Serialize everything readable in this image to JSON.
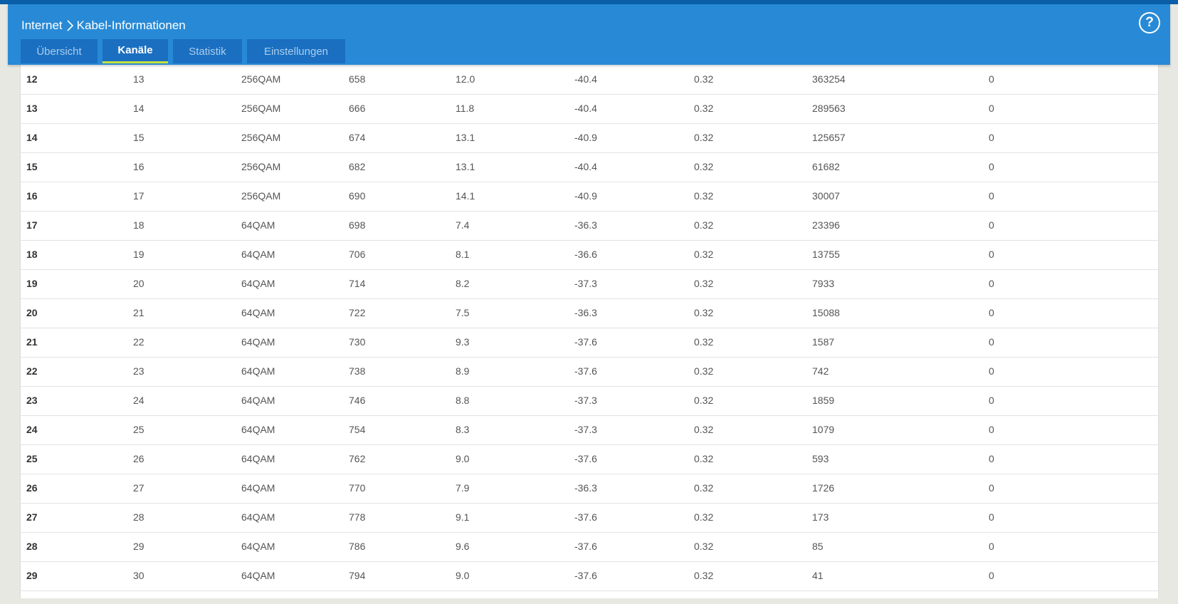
{
  "header": {
    "breadcrumb": {
      "root": "Internet",
      "current": "Kabel-Informationen"
    },
    "help_label": "?",
    "tabs": [
      {
        "label": "Übersicht",
        "active": false
      },
      {
        "label": "Kanäle",
        "active": true
      },
      {
        "label": "Statistik",
        "active": false
      },
      {
        "label": "Einstellungen",
        "active": false
      }
    ]
  },
  "colors": {
    "header_bg": "#288ad6",
    "tab_bg": "#1b6fc0",
    "tab_active_underline": "#c6e23a"
  },
  "icons": {
    "breadcrumb_separator": "chevron-right-icon",
    "help": "question-circle-icon"
  },
  "table": {
    "rows": [
      [
        "12",
        "13",
        "256QAM",
        "658",
        "12.0",
        "-40.4",
        "0.32",
        "363254",
        "0"
      ],
      [
        "13",
        "14",
        "256QAM",
        "666",
        "11.8",
        "-40.4",
        "0.32",
        "289563",
        "0"
      ],
      [
        "14",
        "15",
        "256QAM",
        "674",
        "13.1",
        "-40.9",
        "0.32",
        "125657",
        "0"
      ],
      [
        "15",
        "16",
        "256QAM",
        "682",
        "13.1",
        "-40.4",
        "0.32",
        "61682",
        "0"
      ],
      [
        "16",
        "17",
        "256QAM",
        "690",
        "14.1",
        "-40.9",
        "0.32",
        "30007",
        "0"
      ],
      [
        "17",
        "18",
        "64QAM",
        "698",
        "7.4",
        "-36.3",
        "0.32",
        "23396",
        "0"
      ],
      [
        "18",
        "19",
        "64QAM",
        "706",
        "8.1",
        "-36.6",
        "0.32",
        "13755",
        "0"
      ],
      [
        "19",
        "20",
        "64QAM",
        "714",
        "8.2",
        "-37.3",
        "0.32",
        "7933",
        "0"
      ],
      [
        "20",
        "21",
        "64QAM",
        "722",
        "7.5",
        "-36.3",
        "0.32",
        "15088",
        "0"
      ],
      [
        "21",
        "22",
        "64QAM",
        "730",
        "9.3",
        "-37.6",
        "0.32",
        "1587",
        "0"
      ],
      [
        "22",
        "23",
        "64QAM",
        "738",
        "8.9",
        "-37.6",
        "0.32",
        "742",
        "0"
      ],
      [
        "23",
        "24",
        "64QAM",
        "746",
        "8.8",
        "-37.3",
        "0.32",
        "1859",
        "0"
      ],
      [
        "24",
        "25",
        "64QAM",
        "754",
        "8.3",
        "-37.3",
        "0.32",
        "1079",
        "0"
      ],
      [
        "25",
        "26",
        "64QAM",
        "762",
        "9.0",
        "-37.6",
        "0.32",
        "593",
        "0"
      ],
      [
        "26",
        "27",
        "64QAM",
        "770",
        "7.9",
        "-36.3",
        "0.32",
        "1726",
        "0"
      ],
      [
        "27",
        "28",
        "64QAM",
        "778",
        "9.1",
        "-37.6",
        "0.32",
        "173",
        "0"
      ],
      [
        "28",
        "29",
        "64QAM",
        "786",
        "9.6",
        "-37.6",
        "0.32",
        "85",
        "0"
      ],
      [
        "29",
        "30",
        "64QAM",
        "794",
        "9.0",
        "-37.6",
        "0.32",
        "41",
        "0"
      ]
    ]
  }
}
